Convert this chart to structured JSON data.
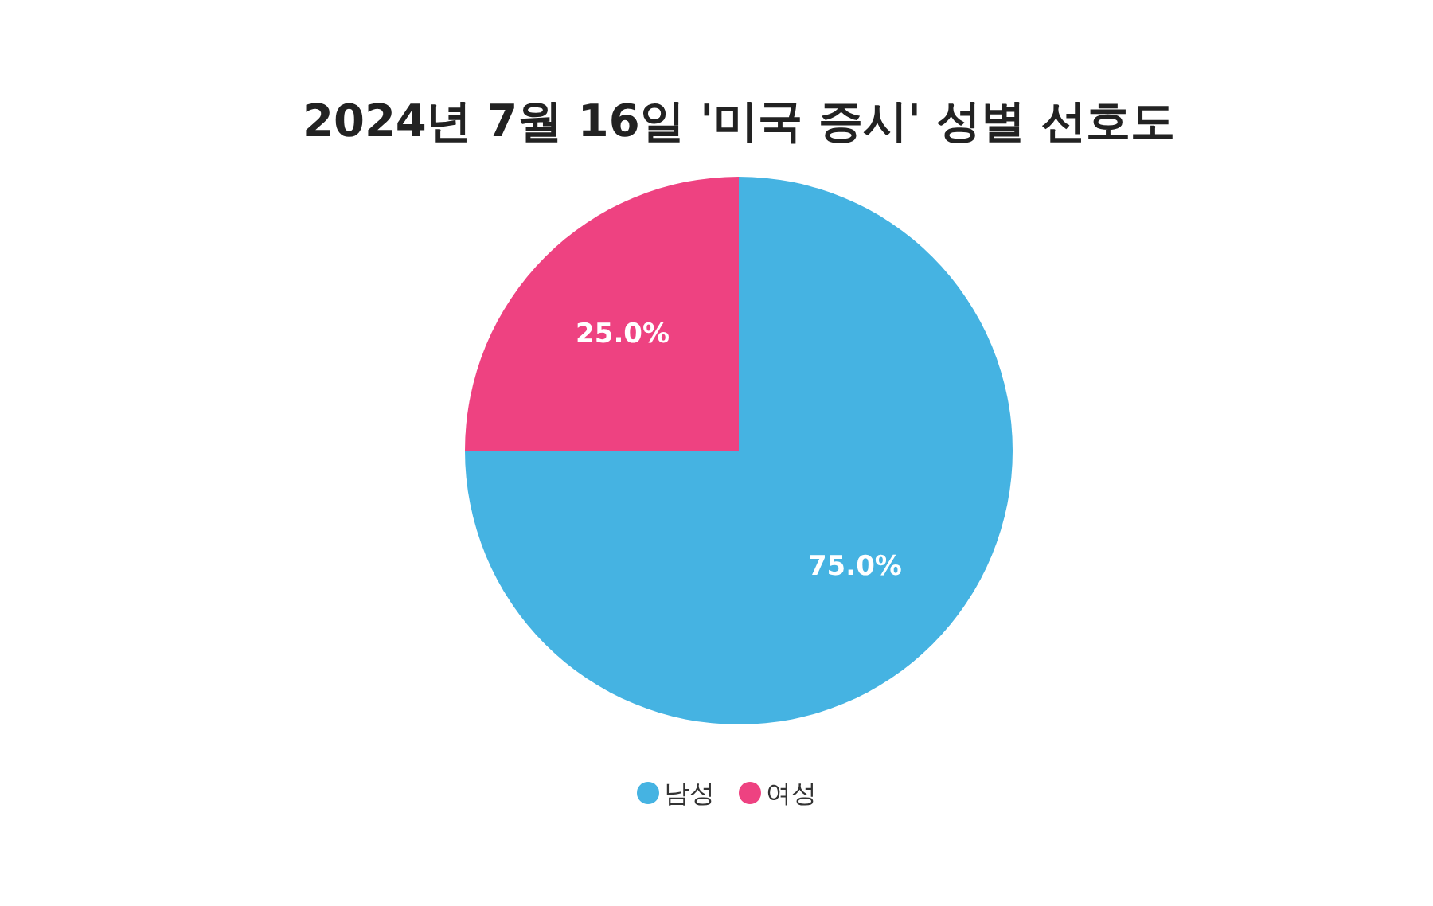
{
  "chart_data": {
    "type": "pie",
    "title": "2024년 7월 16일 '미국 증시' 성별 선호도",
    "categories": [
      "남성",
      "여성"
    ],
    "values": [
      75,
      25
    ],
    "colors": [
      "#45b3e2",
      "#ee4281"
    ],
    "value_labels": [
      "75.0%",
      "25.0%"
    ],
    "legend": "bottom"
  }
}
